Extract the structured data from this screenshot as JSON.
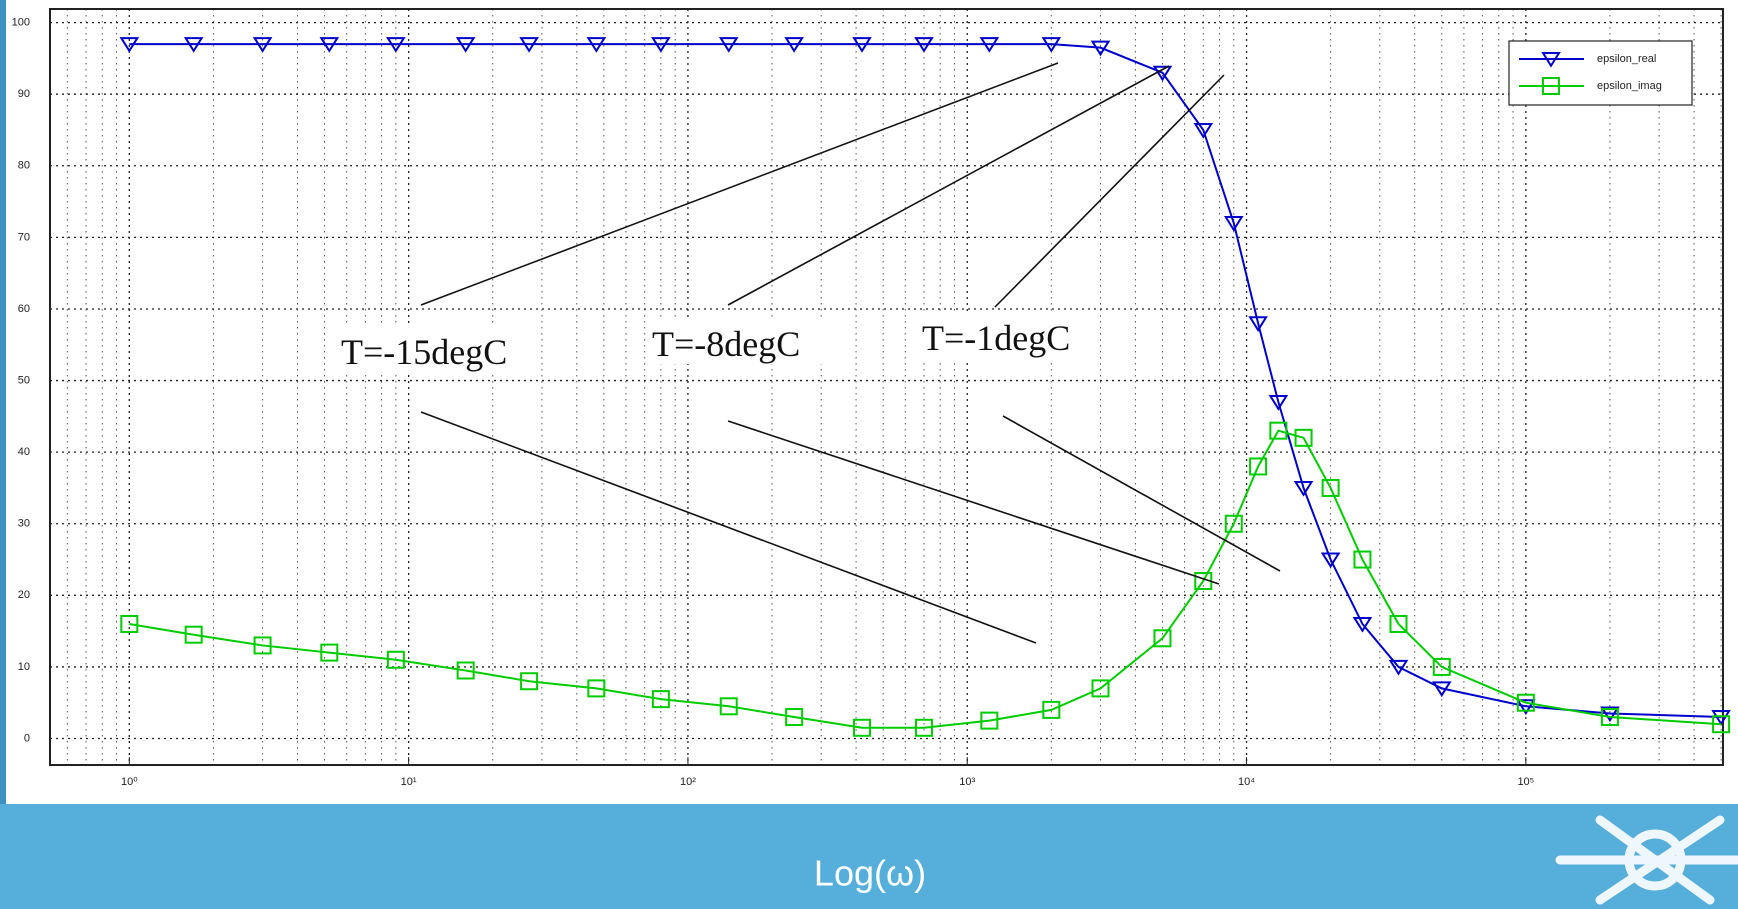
{
  "chart_data": {
    "type": "line",
    "x_label": "Log(ω)",
    "x": [
      1,
      1.7,
      3,
      5.2,
      9,
      16,
      27,
      47,
      80,
      140,
      240,
      420,
      700,
      1200,
      2000,
      3000,
      5000,
      7000,
      9000,
      11000,
      13000,
      16000,
      20000,
      26000,
      35000,
      50000,
      100000,
      200000,
      500000
    ],
    "series": [
      {
        "name": "epsilon_real",
        "color": "#0000cc",
        "marker": "triangle-down",
        "values": [
          97,
          97,
          97,
          97,
          97,
          97,
          97,
          97,
          97,
          97,
          97,
          97,
          97,
          97,
          97,
          96.5,
          93,
          85,
          72,
          58,
          47,
          35,
          25,
          16,
          10,
          7,
          4.5,
          3.5,
          3
        ]
      },
      {
        "name": "epsilon_imag",
        "color": "#00cc00",
        "marker": "square",
        "values": [
          16,
          14.5,
          13,
          12,
          11,
          9.5,
          8,
          7,
          5.5,
          4.5,
          3,
          1.5,
          1.5,
          2.5,
          4,
          7,
          14,
          22,
          30,
          38,
          43,
          42,
          35,
          25,
          16,
          10,
          5,
          3,
          2
        ]
      }
    ],
    "xlim": [
      0.52,
      508000
    ],
    "ylim": [
      -3.7,
      101.9
    ],
    "x_log": true,
    "xticks": [
      {
        "value": 1,
        "label": "10⁰"
      },
      {
        "value": 10,
        "label": "10¹"
      },
      {
        "value": 100,
        "label": "10²"
      },
      {
        "value": 1000,
        "label": "10³"
      },
      {
        "value": 10000,
        "label": "10⁴"
      },
      {
        "value": 100000,
        "label": "10⁵"
      }
    ],
    "yticks": [
      0,
      10,
      20,
      30,
      40,
      50,
      60,
      70,
      80,
      90,
      100
    ],
    "grid": true,
    "legend": "upper right",
    "annotations": [
      "T=-15degC",
      "T=-8degC",
      "T=-1degC"
    ]
  }
}
